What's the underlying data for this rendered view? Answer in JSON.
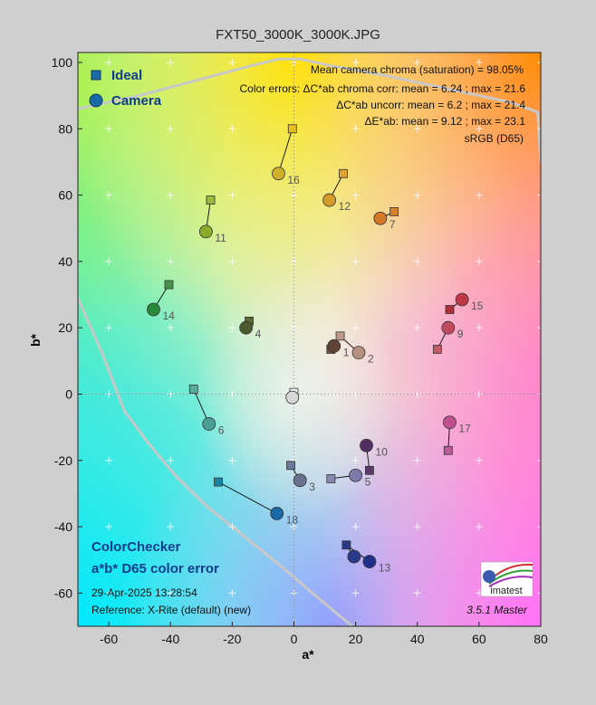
{
  "window": {
    "title": "FXT50_3000K_3000K.JPG"
  },
  "chart_data": {
    "type": "scatter",
    "title": "FXT50_3000K_3000K.JPG",
    "xlabel": "a*",
    "ylabel": "b*",
    "xlim": [
      -70,
      80
    ],
    "ylim": [
      -70,
      103
    ],
    "xticks": [
      -60,
      -40,
      -20,
      0,
      20,
      40,
      60,
      80
    ],
    "yticks": [
      -60,
      -40,
      -20,
      0,
      20,
      40,
      60,
      80,
      100
    ],
    "grid": true,
    "legend": {
      "placement": "top-left",
      "items": [
        {
          "label": "Ideal",
          "marker": "square",
          "color": "#1a6aa8"
        },
        {
          "label": "Camera",
          "marker": "circle",
          "color": "#1a6aa8"
        }
      ]
    },
    "series": [
      {
        "name": "Ideal",
        "points": [
          {
            "id": "1",
            "a": 12,
            "b": 13.5,
            "color": "#7a4f3f"
          },
          {
            "id": "2",
            "a": 15,
            "b": 17.5,
            "color": "#c09a88"
          },
          {
            "id": "3",
            "a": -1,
            "b": -21.5,
            "color": "#6a7a9a"
          },
          {
            "id": "4",
            "a": -14.5,
            "b": 22,
            "color": "#5a6a30"
          },
          {
            "id": "5",
            "a": 12,
            "b": -25.5,
            "color": "#8a88b0"
          },
          {
            "id": "6",
            "a": -32.5,
            "b": 1.5,
            "color": "#5aac9e"
          },
          {
            "id": "7",
            "a": 32.5,
            "b": 55,
            "color": "#d67e2a"
          },
          {
            "id": "9",
            "a": 46.5,
            "b": 13.5,
            "color": "#c25a68"
          },
          {
            "id": "10",
            "a": 24.5,
            "b": -23,
            "color": "#5c3a6a"
          },
          {
            "id": "11",
            "a": -27,
            "b": 58.5,
            "color": "#9aba3a"
          },
          {
            "id": "12",
            "a": 16,
            "b": 66.5,
            "color": "#e0a230"
          },
          {
            "id": "13",
            "a": 17,
            "b": -45.5,
            "color": "#2a3a8a"
          },
          {
            "id": "14",
            "a": -40.5,
            "b": 33,
            "color": "#46934a"
          },
          {
            "id": "15",
            "a": 50.5,
            "b": 25.5,
            "color": "#b0303a"
          },
          {
            "id": "16",
            "a": -0.5,
            "b": 80,
            "color": "#e6c020"
          },
          {
            "id": "17",
            "a": 50,
            "b": -17,
            "color": "#bc5a9a"
          },
          {
            "id": "18",
            "a": -24.5,
            "b": -26.5,
            "color": "#1a82a0"
          },
          {
            "id": "N",
            "a": 0,
            "b": 0.5,
            "color": "#f4f4f4"
          }
        ]
      },
      {
        "name": "Camera",
        "points": [
          {
            "id": "1",
            "a": 13,
            "b": 14.5,
            "color": "#604438"
          },
          {
            "id": "2",
            "a": 21,
            "b": 12.5,
            "color": "#b89080"
          },
          {
            "id": "3",
            "a": 2,
            "b": -26,
            "color": "#6a7292"
          },
          {
            "id": "4",
            "a": -15.5,
            "b": 20,
            "color": "#4a5a2a"
          },
          {
            "id": "5",
            "a": 20,
            "b": -24.5,
            "color": "#7c7aa8"
          },
          {
            "id": "6",
            "a": -27.5,
            "b": -9,
            "color": "#4aa094"
          },
          {
            "id": "7",
            "a": 28,
            "b": 53,
            "color": "#d4782a"
          },
          {
            "id": "9",
            "a": 50,
            "b": 20,
            "color": "#c24a60"
          },
          {
            "id": "10",
            "a": 23.5,
            "b": -15.5,
            "color": "#522e62"
          },
          {
            "id": "11",
            "a": -28.5,
            "b": 49,
            "color": "#8aaa2a"
          },
          {
            "id": "12",
            "a": 11.5,
            "b": 58.5,
            "color": "#d49a2a"
          },
          {
            "id": "13",
            "a": 24.5,
            "b": -50.5,
            "color": "#20308a"
          },
          {
            "id": "14",
            "a": -45.5,
            "b": 25.5,
            "color": "#2a8a3a"
          },
          {
            "id": "15",
            "a": 54.5,
            "b": 28.5,
            "color": "#c03848"
          },
          {
            "id": "16",
            "a": -5,
            "b": 66.5,
            "color": "#d0b02a"
          },
          {
            "id": "17",
            "a": 50.5,
            "b": -8.5,
            "color": "#c05090"
          },
          {
            "id": "18",
            "a": -5.5,
            "b": -36,
            "color": "#1a6aa8"
          },
          {
            "id": "19",
            "a": 19.5,
            "b": -49,
            "color": "#2a3a8a"
          },
          {
            "id": "N",
            "a": -0.5,
            "b": -1,
            "color": "#d8d8d8"
          }
        ]
      }
    ],
    "annotations": {
      "top_right": [
        "Mean camera chroma (saturation) = 98.05%",
        "Color errors: ΔC*ab chroma corr:  mean = 6.24 ;  max = 21.6",
        "ΔC*ab uncorr:  mean = 6.2 ;  max = 21.4",
        "ΔE*ab:  mean = 9.12 ;  max = 23.1",
        "sRGB (D65)"
      ],
      "bottom_left": {
        "heading1": "ColorChecker",
        "heading2": "a*b* D65 color error",
        "timestamp": "29-Apr-2025 13:28:54",
        "reference": "Reference: X-Rite (default) (new)"
      },
      "logo_text": "imatest",
      "version": "3.5.1  Master"
    }
  },
  "colors": {
    "background": "#cfcfcf",
    "legend_text": "#0f3c8c",
    "footer_text": "#0f3c8c"
  }
}
